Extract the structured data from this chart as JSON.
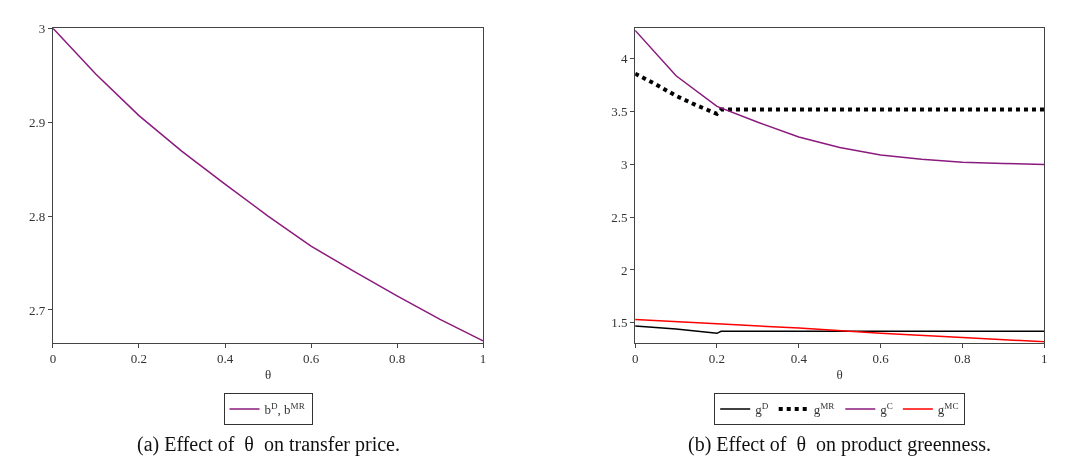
{
  "chart_data": [
    {
      "type": "line",
      "xlabel": "θ",
      "xlim": [
        0,
        1
      ],
      "ylim": [
        2.665,
        3.0
      ],
      "xticks": [
        0,
        0.2,
        0.4,
        0.6,
        0.8,
        1
      ],
      "yticks": [
        2.7,
        2.8,
        2.9,
        3
      ],
      "legend": "bottom",
      "marker": "none",
      "series": [
        {
          "name": "b$^{D}$, b$^{MR}$",
          "color": "#8b1a7e",
          "x": [
            0,
            0.1,
            0.2,
            0.3,
            0.4,
            0.5,
            0.6,
            0.7,
            0.8,
            0.9,
            1
          ],
          "values": [
            3.0,
            2.951,
            2.907,
            2.869,
            2.834,
            2.8,
            2.768,
            2.741,
            2.715,
            2.69,
            2.667
          ]
        }
      ],
      "annotations": [
        "(a) Effect of  θ  on transfer price."
      ]
    },
    {
      "type": "line",
      "xlabel": "θ",
      "xlim": [
        0,
        1
      ],
      "ylim": [
        1.31,
        4.29
      ],
      "xticks": [
        0,
        0.2,
        0.4,
        0.6,
        0.8,
        1
      ],
      "yticks": [
        1.5,
        2,
        2.5,
        3,
        3.5,
        4
      ],
      "legend": "bottom",
      "marker": "none",
      "series": [
        {
          "name": "g$^{D}$",
          "color": "#000000",
          "line_style": "solid",
          "x": [
            0,
            0.1,
            0.2,
            0.21,
            0.4,
            0.6,
            0.8,
            1
          ],
          "values": [
            1.47,
            1.44,
            1.4,
            1.42,
            1.42,
            1.42,
            1.42,
            1.42
          ]
        },
        {
          "name": "g$^{MR}$",
          "color": "#000000",
          "line_style": "dotted",
          "x": [
            0,
            0.05,
            0.1,
            0.15,
            0.2,
            0.21,
            0.4,
            0.6,
            0.8,
            1
          ],
          "values": [
            3.86,
            3.76,
            3.65,
            3.56,
            3.48,
            3.52,
            3.52,
            3.52,
            3.52,
            3.52
          ]
        },
        {
          "name": "g$^{C}$",
          "color": "#8b1a7e",
          "line_style": "solid",
          "x": [
            0,
            0.1,
            0.2,
            0.3,
            0.4,
            0.5,
            0.6,
            0.7,
            0.8,
            0.9,
            1
          ],
          "values": [
            4.27,
            3.84,
            3.55,
            3.4,
            3.26,
            3.16,
            3.09,
            3.05,
            3.02,
            3.01,
            3.0
          ]
        },
        {
          "name": "g$^{MC}$",
          "color": "#ff0000",
          "line_style": "solid",
          "x": [
            0,
            0.2,
            0.4,
            0.6,
            0.8,
            1
          ],
          "values": [
            1.53,
            1.49,
            1.45,
            1.4,
            1.36,
            1.32
          ]
        }
      ],
      "annotations": [
        "(b) Effect of  θ  on product greenness."
      ]
    }
  ]
}
